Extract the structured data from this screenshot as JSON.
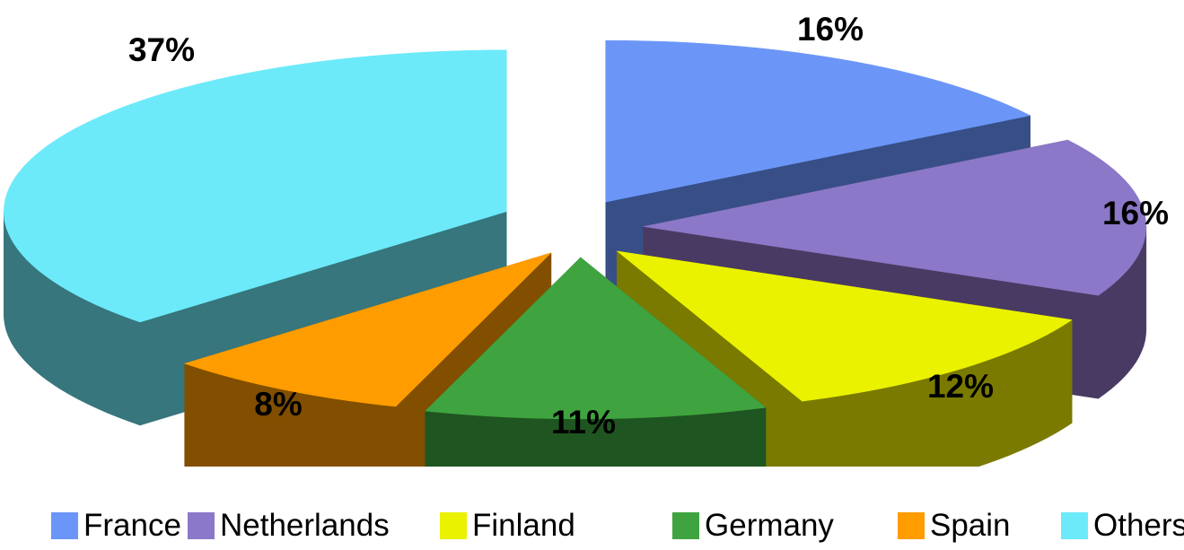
{
  "chart_data": {
    "type": "pie",
    "style": "3d-exploded",
    "legend_position": "bottom",
    "slices": [
      {
        "label": "France",
        "value": 16,
        "data_label": "16%",
        "color": "#6B96F8",
        "side_color": "#374F86"
      },
      {
        "label": "Netherlands",
        "value": 16,
        "data_label": "16%",
        "color": "#8C78C8",
        "side_color": "#493A63"
      },
      {
        "label": "Finland",
        "value": 12,
        "data_label": "12%",
        "color": "#EAF200",
        "side_color": "#7A7A00"
      },
      {
        "label": "Germany",
        "value": 11,
        "data_label": "11%",
        "color": "#3FA43F",
        "side_color": "#1F5520"
      },
      {
        "label": "Spain",
        "value": 8,
        "data_label": "8%",
        "color": "#FF9C00",
        "side_color": "#824F00"
      },
      {
        "label": "Others",
        "value": 37,
        "data_label": "37%",
        "color": "#6CEAFA",
        "side_color": "#36767C"
      }
    ]
  }
}
